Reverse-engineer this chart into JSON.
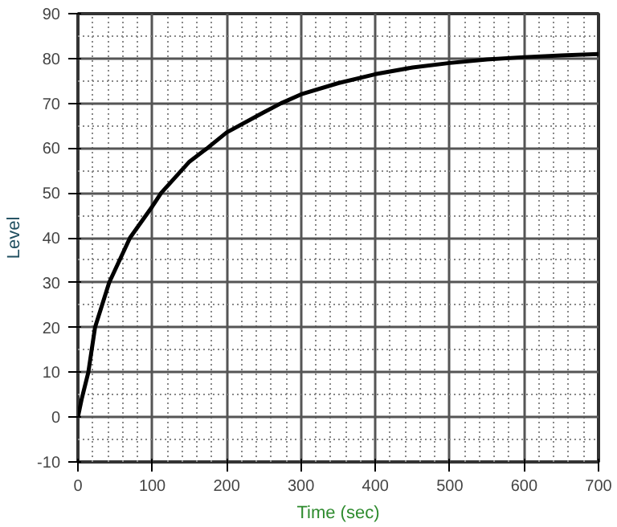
{
  "chart_data": {
    "type": "line",
    "xlabel": "Time (sec)",
    "ylabel": "Level",
    "x": [
      0,
      5,
      14,
      23,
      42,
      70,
      100,
      112,
      150,
      174,
      200,
      250,
      273,
      300,
      350,
      400,
      450,
      500,
      550,
      600,
      650,
      700
    ],
    "series": [
      {
        "color": "#000000",
        "values": [
          0,
          4,
          10,
          20,
          30,
          40,
          47,
          50,
          57,
          60,
          63.5,
          68,
          70,
          72,
          74.5,
          76.5,
          78,
          79,
          79.8,
          80.3,
          80.7,
          81
        ]
      }
    ],
    "xlim": [
      0,
      700
    ],
    "ylim": [
      -10,
      90
    ],
    "xticks": [
      0,
      100,
      200,
      300,
      400,
      500,
      600,
      700
    ],
    "yticks": [
      -10,
      0,
      10,
      20,
      30,
      40,
      50,
      60,
      70,
      80,
      90
    ],
    "grid": true,
    "marker": "none",
    "line_style": "solid"
  }
}
